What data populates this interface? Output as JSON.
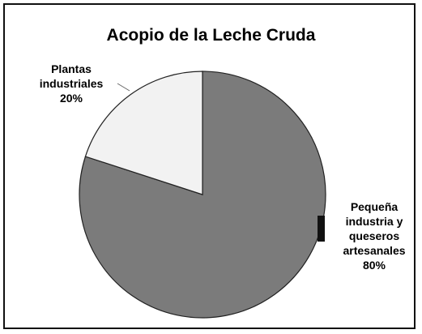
{
  "chart_data": {
    "type": "pie",
    "title": "Acopio de la Leche Cruda",
    "categories": [
      "Pequeña industria y queseros artesanales",
      "Plantas industriales"
    ],
    "values": [
      80,
      20
    ],
    "value_labels": [
      "80%",
      "20%"
    ],
    "colors": [
      "#7b7b7b",
      "#f2f2f2"
    ]
  }
}
